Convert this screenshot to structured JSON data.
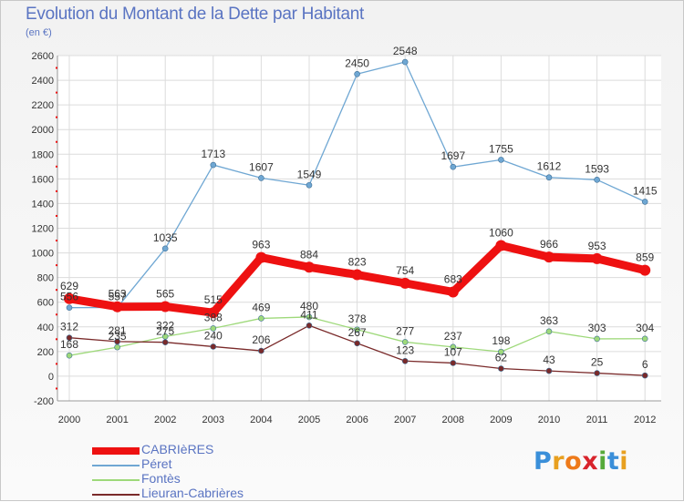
{
  "title": "Evolution du Montant de la Dette par Habitant",
  "subtitle": "(en €)",
  "logo": {
    "letters": [
      "P",
      "r",
      "o",
      "x",
      "i",
      "t",
      "i"
    ],
    "colors": [
      "#3a8fd9",
      "#e8a020",
      "#ee7a1a",
      "#d8242c",
      "#56aa3a",
      "#3a8fd9",
      "#e8a020"
    ]
  },
  "chart_data": {
    "type": "line",
    "x": [
      "2000",
      "2001",
      "2002",
      "2003",
      "2004",
      "2005",
      "2006",
      "2007",
      "2008",
      "2009",
      "2010",
      "2011",
      "2012"
    ],
    "ylim": [
      -200,
      2600
    ],
    "yticks": [
      -200,
      0,
      200,
      400,
      600,
      800,
      1000,
      1200,
      1400,
      1600,
      1800,
      2000,
      2200,
      2400,
      2600
    ],
    "grid": true,
    "legend_position": "bottom-left",
    "series": [
      {
        "name": "CABRIèRES",
        "color": "#ee1111",
        "values": [
          629,
          563,
          565,
          515,
          963,
          884,
          823,
          754,
          683,
          1060,
          966,
          953,
          859
        ],
        "labels": [
          "629",
          "563",
          "565",
          "515",
          "963",
          "884",
          "823",
          "754",
          "683",
          "1060",
          "966",
          "953",
          "859"
        ]
      },
      {
        "name": "Péret",
        "color": "#6fa7d3",
        "values": [
          556,
          557,
          1035,
          1713,
          1607,
          1549,
          2450,
          2548,
          1697,
          1755,
          1612,
          1593,
          1415
        ],
        "labels": [
          "556",
          "557",
          "1035",
          "1713",
          "1607",
          "1549",
          "2450",
          "2548",
          "1697",
          "1755",
          "1612",
          "1593",
          "1415"
        ]
      },
      {
        "name": "Fontès",
        "color": "#9ed97a",
        "values": [
          168,
          235,
          322,
          388,
          469,
          480,
          378,
          277,
          237,
          198,
          363,
          303,
          304
        ],
        "labels": [
          "168",
          "235",
          "322",
          "388",
          "469",
          "480",
          "378",
          "277",
          "237",
          "198",
          "363",
          "303",
          "304"
        ]
      },
      {
        "name": "Lieuran-Cabrières",
        "color": "#7a2a2a",
        "values": [
          312,
          281,
          275,
          240,
          206,
          411,
          267,
          123,
          107,
          62,
          43,
          25,
          6
        ],
        "labels": [
          "312",
          "281",
          "275",
          "240",
          "206",
          "411",
          "267",
          "123",
          "107",
          "62",
          "43",
          "25",
          "6"
        ]
      }
    ]
  }
}
